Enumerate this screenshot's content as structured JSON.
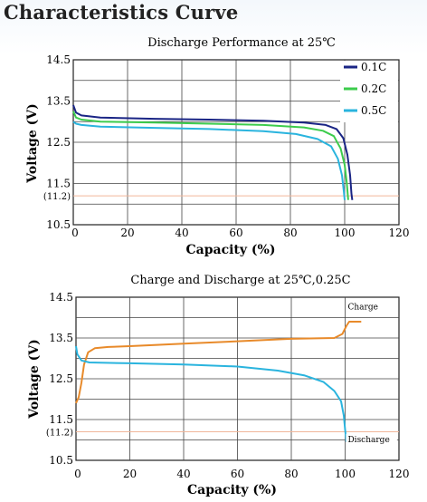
{
  "page": {
    "title": "Characteristics Curve"
  },
  "chart_data": [
    {
      "type": "line",
      "title": "Discharge Performance at 25℃",
      "xlabel": "Capacity (%)",
      "ylabel": "Voltage (V)",
      "xlim": [
        0,
        120
      ],
      "ylim": [
        10.5,
        14.5
      ],
      "x_ticks": [
        "0",
        "20",
        "40",
        "60",
        "80",
        "100",
        "120"
      ],
      "y_ticks": [
        {
          "value": 14.5,
          "label": "14.5"
        },
        {
          "value": 13.5,
          "label": "13.5"
        },
        {
          "value": 12.5,
          "label": "12.5"
        },
        {
          "value": 11.5,
          "label": "11.5"
        },
        {
          "value": 11.2,
          "label": "(11.2)"
        },
        {
          "value": 10.5,
          "label": "10.5"
        }
      ],
      "reference_line": {
        "value": 11.2,
        "color": "#f0b69a"
      },
      "grid": true,
      "legend_position": "top-right",
      "series": [
        {
          "name": "0.1C",
          "color": "#1a2585",
          "points": [
            [
              0,
              13.4
            ],
            [
              1,
              13.22
            ],
            [
              3,
              13.15
            ],
            [
              10,
              13.1
            ],
            [
              30,
              13.07
            ],
            [
              50,
              13.05
            ],
            [
              70,
              13.02
            ],
            [
              85,
              12.98
            ],
            [
              93,
              12.92
            ],
            [
              97,
              12.82
            ],
            [
              99.5,
              12.6
            ],
            [
              101,
              12.2
            ],
            [
              102,
              11.7
            ],
            [
              102.5,
              11.25
            ],
            [
              102.8,
              11.1
            ]
          ]
        },
        {
          "name": "0.2C",
          "color": "#3ccc4c",
          "points": [
            [
              0,
              13.25
            ],
            [
              1,
              13.1
            ],
            [
              3,
              13.05
            ],
            [
              10,
              13.0
            ],
            [
              30,
              12.98
            ],
            [
              50,
              12.95
            ],
            [
              70,
              12.92
            ],
            [
              85,
              12.86
            ],
            [
              92,
              12.78
            ],
            [
              96,
              12.65
            ],
            [
              98.5,
              12.35
            ],
            [
              100,
              11.95
            ],
            [
              100.8,
              11.5
            ],
            [
              101.3,
              11.1
            ]
          ]
        },
        {
          "name": "0.5C",
          "color": "#2ab4de",
          "points": [
            [
              0,
              13.0
            ],
            [
              1,
              12.95
            ],
            [
              3,
              12.92
            ],
            [
              10,
              12.88
            ],
            [
              30,
              12.85
            ],
            [
              50,
              12.82
            ],
            [
              70,
              12.77
            ],
            [
              82,
              12.7
            ],
            [
              90,
              12.58
            ],
            [
              95,
              12.4
            ],
            [
              97.5,
              12.1
            ],
            [
              99,
              11.7
            ],
            [
              99.7,
              11.3
            ],
            [
              100,
              11.1
            ]
          ]
        }
      ]
    },
    {
      "type": "line",
      "title": "Charge and Discharge  at 25℃,0.25C",
      "xlabel": "Capacity (%)",
      "ylabel": "Voltage (V)",
      "xlim": [
        0,
        120
      ],
      "ylim": [
        10.5,
        14.5
      ],
      "x_ticks": [
        "0",
        "20",
        "40",
        "60",
        "80",
        "100",
        "120"
      ],
      "y_ticks": [
        {
          "value": 14.5,
          "label": "14.5"
        },
        {
          "value": 13.5,
          "label": "13.5"
        },
        {
          "value": 12.5,
          "label": "12.5"
        },
        {
          "value": 11.5,
          "label": "11.5"
        },
        {
          "value": 11.2,
          "label": "(11.2)"
        },
        {
          "value": 10.5,
          "label": "10.5"
        }
      ],
      "reference_line": {
        "value": 11.2,
        "color": "#f0b69a"
      },
      "grid": true,
      "annotations": [
        {
          "text": "Charge",
          "x": 101,
          "y": 14.2
        },
        {
          "text": "Discharge",
          "x": 101,
          "y": 10.95
        }
      ],
      "series": [
        {
          "name": "Charge",
          "color": "#e88a2a",
          "points": [
            [
              0,
              11.9
            ],
            [
              1,
              12.05
            ],
            [
              2,
              12.4
            ],
            [
              3,
              12.85
            ],
            [
              4.5,
              13.15
            ],
            [
              7,
              13.25
            ],
            [
              12,
              13.28
            ],
            [
              20,
              13.3
            ],
            [
              40,
              13.36
            ],
            [
              60,
              13.42
            ],
            [
              80,
              13.48
            ],
            [
              96,
              13.5
            ],
            [
              99,
              13.6
            ],
            [
              100.5,
              13.8
            ],
            [
              101.5,
              13.9
            ],
            [
              106,
              13.9
            ]
          ]
        },
        {
          "name": "Discharge",
          "color": "#2ab4de",
          "points": [
            [
              0,
              13.3
            ],
            [
              0.5,
              13.1
            ],
            [
              2,
              12.95
            ],
            [
              5,
              12.9
            ],
            [
              20,
              12.88
            ],
            [
              40,
              12.85
            ],
            [
              60,
              12.8
            ],
            [
              75,
              12.7
            ],
            [
              85,
              12.58
            ],
            [
              92,
              12.42
            ],
            [
              96,
              12.2
            ],
            [
              98.5,
              11.95
            ],
            [
              99.5,
              11.6
            ],
            [
              100,
              11.25
            ],
            [
              100.5,
              10.95
            ]
          ]
        }
      ]
    }
  ]
}
